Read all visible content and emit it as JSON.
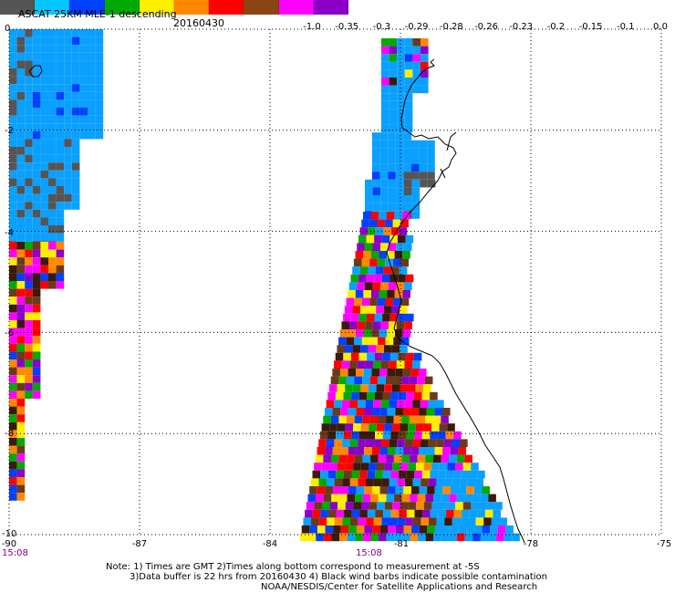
{
  "header": {
    "title": "ASCAT 25KM MLE-1 descending",
    "date": "20160430"
  },
  "colorbar": {
    "colors": [
      "#555555",
      "#00c8ff",
      "#0040ff",
      "#00aa00",
      "#ffee00",
      "#ff8800",
      "#ff0000",
      "#8b4513",
      "#ff00ff",
      "#8a00c8"
    ],
    "labels": [
      "-1.0",
      "-0.35",
      "-0.3",
      "-0.29",
      "-0.28",
      "-0.26",
      "-0.23",
      "-0.2",
      "-0.15",
      "-0.1",
      "0.0"
    ]
  },
  "axes": {
    "y_ticks": [
      "0",
      "-2",
      "-4",
      "-6",
      "-8",
      "-10"
    ],
    "x_ticks": [
      "-90",
      "-87",
      "-84",
      "-81",
      "-78",
      "-75"
    ],
    "time_labels": [
      "15:08",
      "15:08"
    ]
  },
  "map": {
    "x_range": [
      -90,
      -75
    ],
    "y_range": [
      -10,
      0
    ],
    "grid": "dotted",
    "legend_colors": {
      "gray": "#555555",
      "cyan": "#0aa0ff",
      "blue": "#0040ff",
      "green": "#00aa00",
      "yellow": "#ffee00",
      "orange": "#ff8800",
      "red": "#ff0000",
      "brown": "#6b3a1a",
      "magenta": "#ff00ff",
      "purple": "#8a00c8",
      "dark": "#3a1a0a"
    }
  },
  "footer": {
    "note_line1": "Note: 1) Times are GMT 2)Times along bottom correspond to measurement at -5S",
    "note_line2": "3)Data buffer is 22 hrs from 20160430 4) Black wind barbs indicate possible contamination",
    "note_line3": "NOAA/NESDIS/Center for Satellite Applications and Research"
  }
}
